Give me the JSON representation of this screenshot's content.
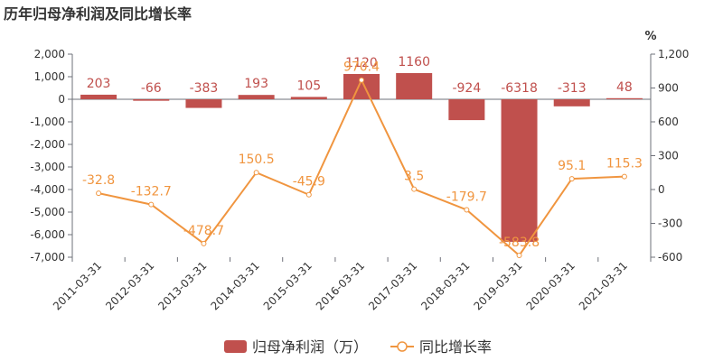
{
  "title": "历年归母净利润及同比增长率",
  "chart_data": {
    "type": "bar",
    "title": "历年归母净利润及同比增长率",
    "categories": [
      "2011-03-31",
      "2012-03-31",
      "2013-03-31",
      "2014-03-31",
      "2015-03-31",
      "2016-03-31",
      "2017-03-31",
      "2018-03-31",
      "2019-03-31",
      "2020-03-31",
      "2021-03-31"
    ],
    "series": [
      {
        "name": "归母净利润（万）",
        "type": "bar",
        "axis": "left",
        "color": "#c0504d",
        "values": [
          203,
          -66,
          -383,
          193,
          105,
          1120,
          1160,
          -924,
          -6318,
          -313,
          48
        ],
        "labels": [
          "203",
          "-66",
          "-383",
          "193",
          "105",
          "1120",
          "1160",
          "-924",
          "-6318",
          "-313",
          "48"
        ]
      },
      {
        "name": "同比增长率",
        "type": "line",
        "axis": "right",
        "color": "#f0953f",
        "values": [
          -32.8,
          -132.7,
          -478.7,
          150.5,
          -45.9,
          970.4,
          3.5,
          -179.7,
          -583.8,
          95.1,
          115.3
        ],
        "labels": [
          "-32.8",
          "-132.7",
          "-478.7",
          "150.5",
          "-45.9",
          "970.4",
          "3.5",
          "-179.7",
          "-583.8",
          "95.1",
          "115.3"
        ]
      }
    ],
    "y_left": {
      "label": "",
      "range": [
        -7000,
        2000
      ],
      "ticks": [
        "2,000",
        "1,000",
        "0",
        "-1,000",
        "-2,000",
        "-3,000",
        "-4,000",
        "-5,000",
        "-6,000",
        "-7,000"
      ],
      "tick_values": [
        2000,
        1000,
        0,
        -1000,
        -2000,
        -3000,
        -4000,
        -5000,
        -6000,
        -7000
      ]
    },
    "y_right": {
      "label": "%",
      "range": [
        -600,
        1200
      ],
      "ticks": [
        "1,200",
        "900",
        "600",
        "300",
        "0",
        "-300",
        "-600"
      ],
      "tick_values": [
        1200,
        900,
        600,
        300,
        0,
        -300,
        -600
      ]
    },
    "grid": false,
    "legend_position": "bottom-center"
  }
}
